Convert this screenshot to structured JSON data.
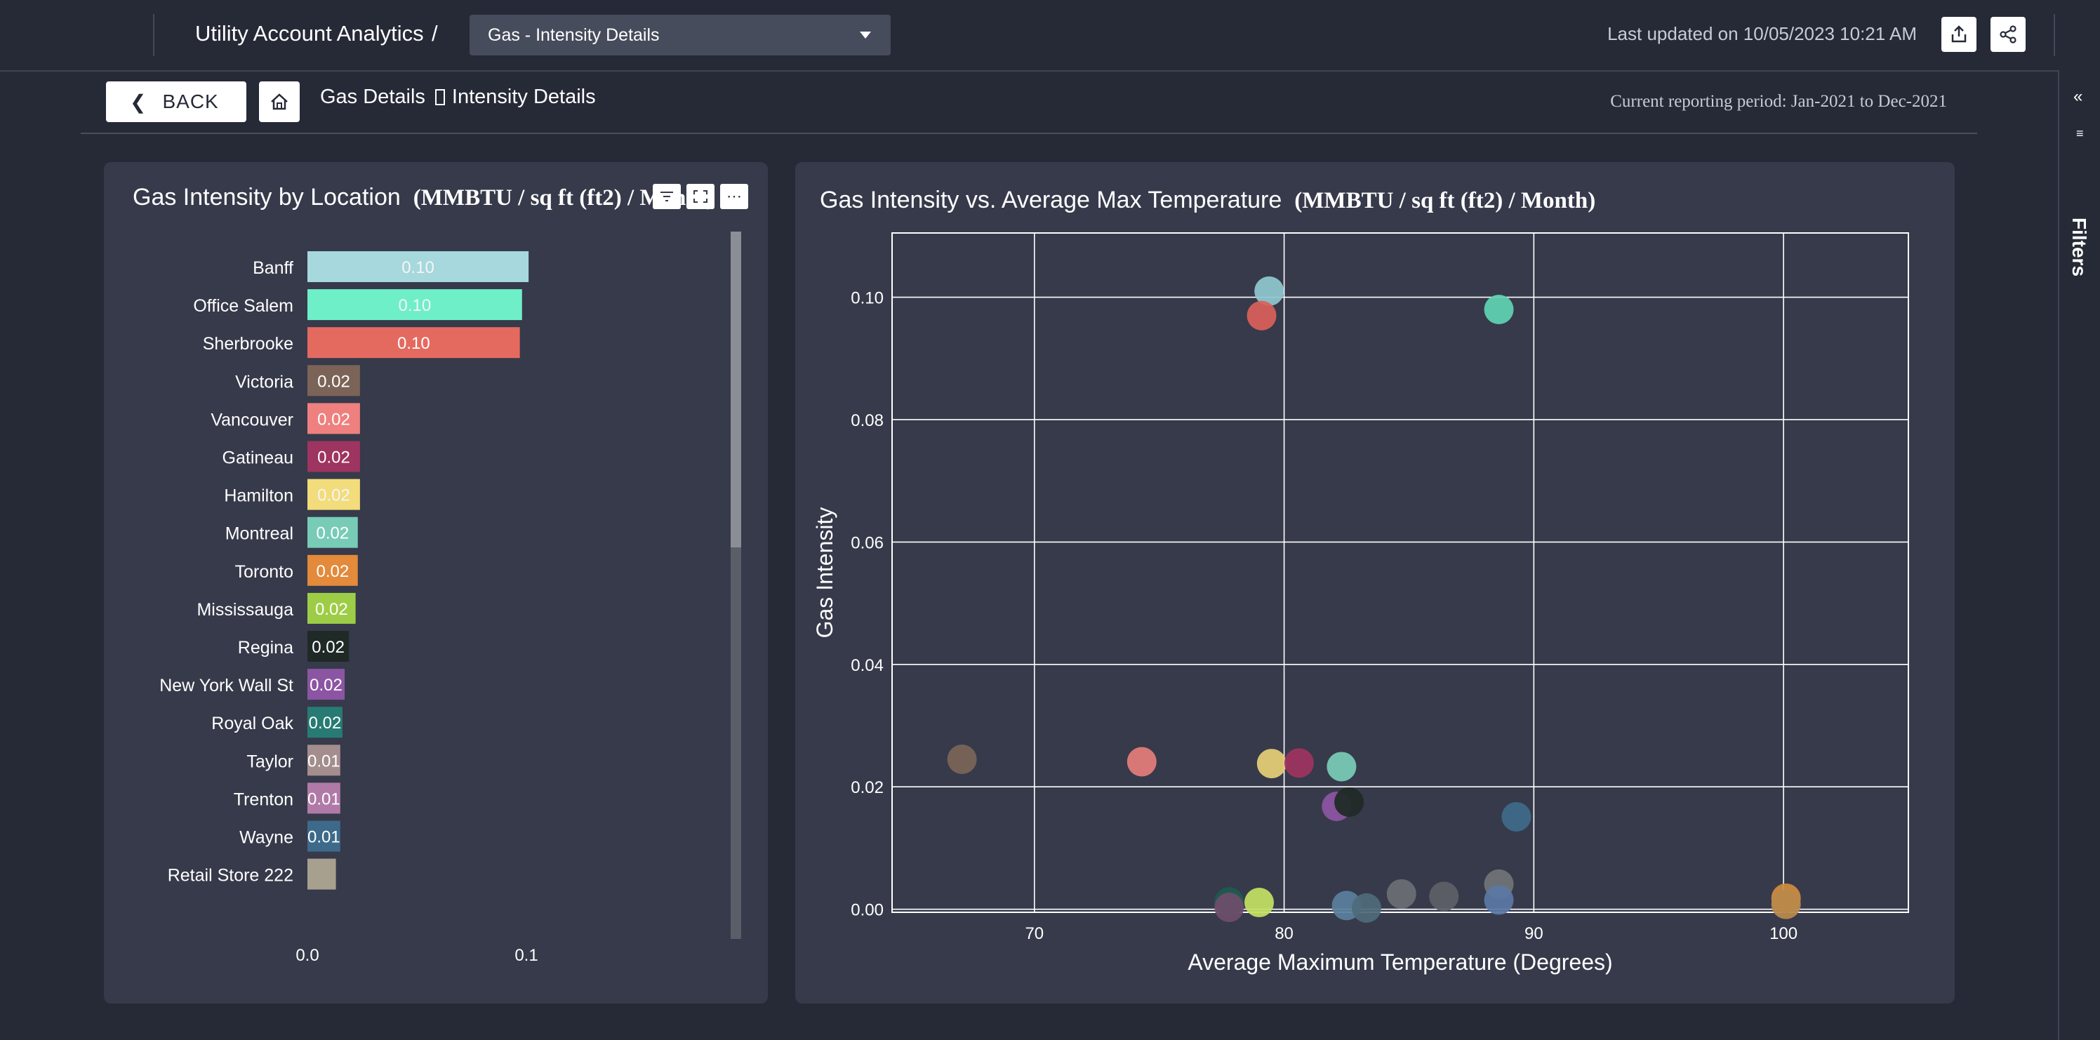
{
  "header": {
    "app_title": "Utility Account Analytics",
    "slash": "/",
    "selected_view": "Gas - Intensity Details",
    "last_updated": "Last updated on 10/05/2023 10:21 AM"
  },
  "subbar": {
    "back_label": "BACK",
    "breadcrumb": [
      "Gas Details",
      "Intensity Details"
    ],
    "reporting_period": "Current reporting period: Jan-2021 to Dec-2021"
  },
  "filters_rail": {
    "label": "Filters"
  },
  "icons": {
    "back": "chevron-left-icon",
    "home": "home-icon",
    "export": "export-icon",
    "share": "share-icon",
    "collapse": "double-chevron-left-icon",
    "filter": "filter-icon",
    "more": "more-options-icon",
    "focus": "focus-mode-icon"
  },
  "left_panel": {
    "title": "Gas Intensity by Location",
    "unit": "(MMBTU / sq ft (ft2) / Month)"
  },
  "right_panel": {
    "title": "Gas Intensity vs. Average Max Temperature",
    "unit": "(MMBTU / sq ft (ft2) / Month)"
  },
  "chart_data": [
    {
      "type": "bar",
      "orientation": "horizontal",
      "title": "Gas Intensity by Location",
      "categories": [
        "Banff",
        "Office Salem",
        "Sherbrooke",
        "Victoria",
        "Vancouver",
        "Gatineau",
        "Hamilton",
        "Montreal",
        "Toronto",
        "Mississauga",
        "Regina",
        "New York Wall St",
        "Royal Oak",
        "Taylor",
        "Trenton",
        "Wayne",
        "Retail Store 222"
      ],
      "values": [
        0.101,
        0.098,
        0.097,
        0.024,
        0.024,
        0.024,
        0.024,
        0.023,
        0.023,
        0.022,
        0.019,
        0.017,
        0.016,
        0.015,
        0.015,
        0.015,
        0.013
      ],
      "data_labels": [
        "0.10",
        "0.10",
        "0.10",
        "0.02",
        "0.02",
        "0.02",
        "0.02",
        "0.02",
        "0.02",
        "0.02",
        "0.02",
        "0.02",
        "0.02",
        "0.01",
        "0.01",
        "0.01",
        ""
      ],
      "colors": [
        "#a6d8dd",
        "#6fefc8",
        "#e46a60",
        "#7b6457",
        "#ee807f",
        "#9e3460",
        "#f3dc7b",
        "#78cbb7",
        "#e38a3b",
        "#9dcd46",
        "#1f2a27",
        "#8c55a3",
        "#277b74",
        "#a48d8d",
        "#b07aa8",
        "#3d6a8a",
        "#a8a08f"
      ],
      "x_ticks": [
        "0.0",
        "0.1"
      ],
      "xlim": [
        0,
        0.125
      ]
    },
    {
      "type": "scatter",
      "title": "Gas Intensity vs. Average Max Temperature",
      "xlabel": "Average Maximum Temperature (Degrees)",
      "ylabel": "Gas Intensity",
      "xlim": [
        64.3,
        105.0
      ],
      "ylim": [
        -0.0005,
        0.1105
      ],
      "x_ticks": [
        "70",
        "80",
        "90",
        "100"
      ],
      "y_ticks": [
        "0.00",
        "0.02",
        "0.04",
        "0.06",
        "0.08",
        "0.10"
      ],
      "grid": true,
      "points": [
        {
          "x": 79.4,
          "y": 0.101,
          "color": "#8fc7d0"
        },
        {
          "x": 79.1,
          "y": 0.097,
          "color": "#d9605a"
        },
        {
          "x": 88.6,
          "y": 0.098,
          "color": "#5fd2b1"
        },
        {
          "x": 67.1,
          "y": 0.0245,
          "color": "#7b6457"
        },
        {
          "x": 74.3,
          "y": 0.0241,
          "color": "#e47d7a"
        },
        {
          "x": 79.5,
          "y": 0.0238,
          "color": "#e5cf76"
        },
        {
          "x": 80.6,
          "y": 0.0239,
          "color": "#9e3460"
        },
        {
          "x": 82.3,
          "y": 0.0233,
          "color": "#78cbb7"
        },
        {
          "x": 82.1,
          "y": 0.0168,
          "color": "#8c55a3"
        },
        {
          "x": 82.6,
          "y": 0.0175,
          "color": "#1f2a27"
        },
        {
          "x": 89.3,
          "y": 0.0151,
          "color": "#3d6a8a"
        },
        {
          "x": 77.8,
          "y": 0.0012,
          "color": "#1c5a4f"
        },
        {
          "x": 77.8,
          "y": 0.0003,
          "color": "#6e4e6a"
        },
        {
          "x": 79.0,
          "y": 0.0011,
          "color": "#c4e063"
        },
        {
          "x": 82.5,
          "y": 0.0006,
          "color": "#5b7f9c"
        },
        {
          "x": 83.3,
          "y": 0.0002,
          "color": "#4f6a7a"
        },
        {
          "x": 84.7,
          "y": 0.0025,
          "color": "#6a6e73"
        },
        {
          "x": 86.4,
          "y": 0.0021,
          "color": "#5d6166"
        },
        {
          "x": 88.6,
          "y": 0.0041,
          "color": "#707479"
        },
        {
          "x": 88.6,
          "y": 0.0015,
          "color": "#5a79a5"
        },
        {
          "x": 100.1,
          "y": 0.0018,
          "color": "#d08c3e"
        },
        {
          "x": 100.1,
          "y": 0.0008,
          "color": "#b98a4b"
        }
      ]
    }
  ]
}
